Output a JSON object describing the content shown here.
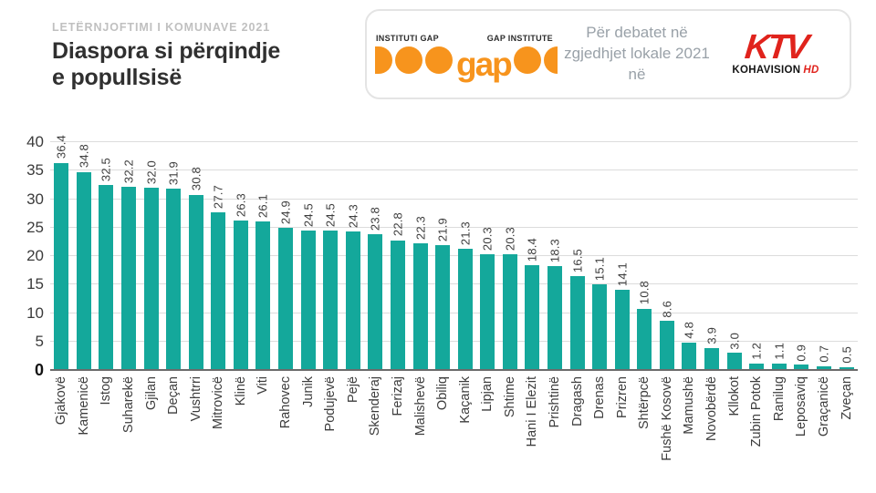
{
  "header": {
    "kicker": "LETËRNJOFTIMI I KOMUNAVE 2021",
    "title_line1": "Diaspora si përqindje",
    "title_line2": "e popullsisë",
    "badge": {
      "gap_logo": {
        "left_label": "INSTITUTI GAP",
        "right_label": "GAP INSTITUTE",
        "wordmark": "gap"
      },
      "text_line1": "Për debatet në",
      "text_line2": "zgjedhjet lokale 2021 në",
      "ktv_logo": {
        "wordmark": "KTV",
        "sub": "KOHAVISION",
        "hd": "HD"
      }
    }
  },
  "colors": {
    "bar": "#14a89b",
    "grid": "#dcdcdc",
    "axis": "#6b6b6b",
    "orange": "#f7941d",
    "red": "#e0231c",
    "kicker": "#c0c0c0",
    "title": "#303030",
    "label": "#3d3d3d"
  },
  "chart_data": {
    "type": "bar",
    "title": "Diaspora si përqindje e popullsisë",
    "xlabel": "",
    "ylabel": "",
    "ylim": [
      0,
      40
    ],
    "yticks": [
      0,
      5,
      10,
      15,
      20,
      25,
      30,
      35,
      40
    ],
    "grid": true,
    "legend": "none",
    "bar_color": "#14a89b",
    "value_labels_rotated": true,
    "categories": [
      "Gjakovë",
      "Kamenicë",
      "Istog",
      "Suharekë",
      "Gjilan",
      "Deçan",
      "Vushtrri",
      "Mitrovicë",
      "Klinë",
      "Viti",
      "Rahovec",
      "Junik",
      "Podujevë",
      "Pejë",
      "Skenderaj",
      "Ferizaj",
      "Malishevë",
      "Obiliq",
      "Kaçanik",
      "Lipjan",
      "Shtime",
      "Hani I Elezit",
      "Prishtinë",
      "Dragash",
      "Drenas",
      "Prizren",
      "Shtërpcë",
      "Fushë Kosovë",
      "Mamushë",
      "Novobërdë",
      "Kllokot",
      "Zubin Potok",
      "Ranilug",
      "Leposaviq",
      "Graçanicë",
      "Zveçan"
    ],
    "values": [
      36.4,
      34.8,
      32.5,
      32.2,
      32.0,
      31.9,
      30.8,
      27.7,
      26.3,
      26.1,
      24.9,
      24.5,
      24.5,
      24.3,
      23.8,
      22.8,
      22.3,
      21.9,
      21.3,
      20.3,
      20.3,
      18.4,
      18.3,
      16.5,
      15.1,
      14.1,
      10.8,
      8.6,
      4.8,
      3.9,
      3.0,
      1.2,
      1.1,
      0.9,
      0.7,
      0.5
    ]
  }
}
